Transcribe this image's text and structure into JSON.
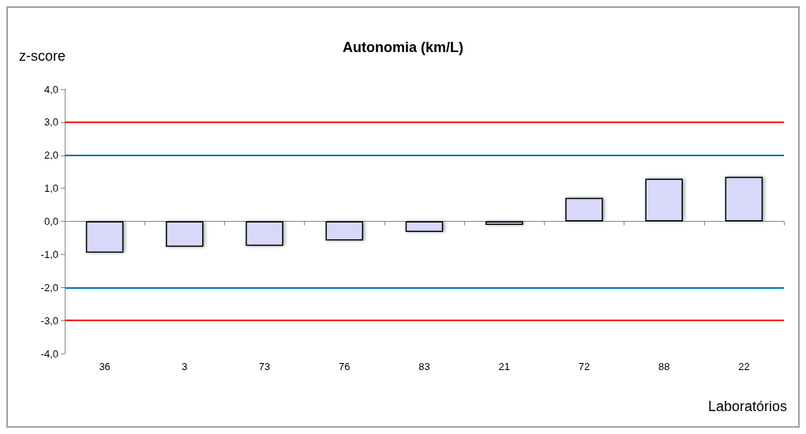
{
  "chart_data": {
    "type": "bar",
    "title": "Autonomia (km/L)",
    "ylabel": "z-score",
    "annotations": [
      "Laboratórios"
    ],
    "categories": [
      "36",
      "3",
      "73",
      "76",
      "83",
      "21",
      "72",
      "88",
      "22"
    ],
    "values": [
      -0.95,
      -0.77,
      -0.74,
      -0.58,
      -0.32,
      -0.11,
      0.71,
      1.29,
      1.35
    ],
    "color": "#d8d8fa",
    "ylim": [
      -4,
      4
    ],
    "yticks": [
      {
        "value": -4,
        "label": "-4,0"
      },
      {
        "value": -3,
        "label": "-3,0"
      },
      {
        "value": -2,
        "label": "-2,0"
      },
      {
        "value": -1,
        "label": "-1,0"
      },
      {
        "value": 0,
        "label": "0,0"
      },
      {
        "value": 1,
        "label": "1,0"
      },
      {
        "value": 2,
        "label": "2,0"
      },
      {
        "value": 3,
        "label": "3,0"
      },
      {
        "value": 4,
        "label": "4,0"
      }
    ],
    "ref_lines": [
      {
        "axis": "y",
        "value": 3,
        "color": "#ff0000"
      },
      {
        "axis": "y",
        "value": 2,
        "color": "#0070c0"
      },
      {
        "axis": "y",
        "value": -2,
        "color": "#0070c0"
      },
      {
        "axis": "y",
        "value": -3,
        "color": "#ff0000"
      }
    ],
    "grid": false
  }
}
